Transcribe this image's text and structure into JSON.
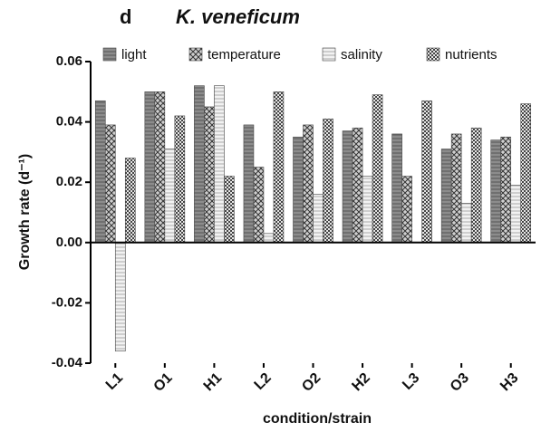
{
  "chart_data": {
    "type": "bar",
    "panel": "d",
    "title": "K. veneficum",
    "x_label": "condition/strain",
    "y_label": "Growth rate (d⁻¹)",
    "categories": [
      "L1",
      "O1",
      "H1",
      "L2",
      "O2",
      "H2",
      "L3",
      "O3",
      "H3"
    ],
    "series": [
      {
        "name": "light",
        "color": "#8c8c8c",
        "values": [
          0.047,
          0.05,
          0.052,
          0.039,
          0.035,
          0.037,
          0.036,
          0.031,
          0.034
        ]
      },
      {
        "name": "temperature",
        "color": "#cfcfcf",
        "values": [
          0.039,
          0.05,
          0.045,
          0.025,
          0.039,
          0.038,
          0.022,
          0.036,
          0.035
        ]
      },
      {
        "name": "salinity",
        "color": "#f2f2f2",
        "values": [
          -0.036,
          0.031,
          0.052,
          0.003,
          0.016,
          0.022,
          null,
          0.013,
          0.019
        ]
      },
      {
        "name": "nutrients",
        "color": "#e6e6e6",
        "values": [
          0.028,
          0.042,
          0.022,
          0.05,
          0.041,
          0.049,
          0.047,
          0.038,
          0.046
        ]
      }
    ],
    "ylim": [
      -0.04,
      0.06
    ],
    "yticks": [
      -0.04,
      -0.02,
      {
        "value": 0,
        "label": "0.00"
      },
      0.02,
      0.04,
      0.06
    ]
  }
}
